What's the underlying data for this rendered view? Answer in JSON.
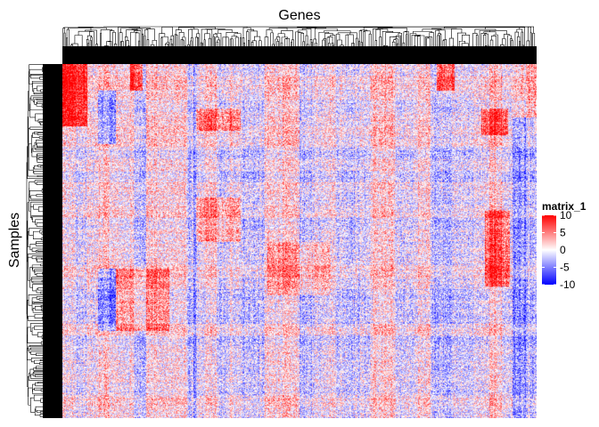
{
  "chart_data": {
    "type": "heatmap",
    "title": "Genes",
    "xlabel": "Genes",
    "ylabel": "Samples",
    "colorscale": {
      "name": "matrix_1",
      "min": -10,
      "max": 10,
      "low_color": "#0000ff",
      "mid_color": "#ffffff",
      "high_color": "#ff0000",
      "ticks": [
        10,
        5,
        0,
        -5,
        -10
      ],
      "tick_labels": [
        "10",
        "5",
        "0",
        "-5",
        "-10"
      ]
    },
    "row_dendrogram": true,
    "column_dendrogram": true,
    "row_labels_shown": false,
    "column_labels_shown": false
  }
}
